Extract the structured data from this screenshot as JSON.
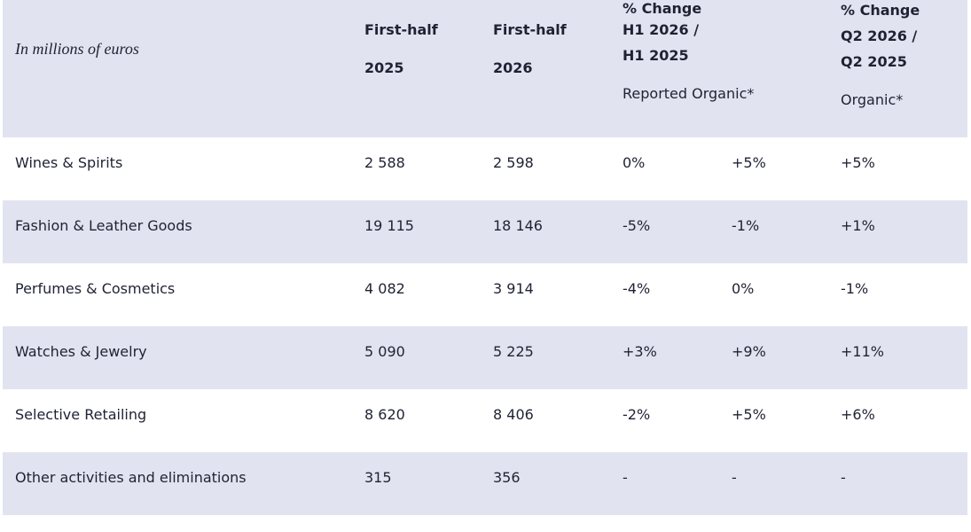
{
  "table": {
    "caption": "In millions of euros",
    "header": {
      "col1": [
        "First-half",
        "2025"
      ],
      "col2": [
        "First-half",
        "2026"
      ],
      "col3": [
        "% Change",
        "H1 2026 /",
        "H1 2025",
        "Reported Organic*"
      ],
      "col4": [
        "% Change",
        "Q2 2026 /",
        "Q2 2025",
        "Organic*"
      ]
    },
    "rows": [
      [
        "Wines & Spirits",
        "2 588",
        "2 598",
        "0%",
        "+5%",
        "+5%"
      ],
      [
        "Fashion & Leather Goods",
        "19 115",
        "18 146",
        "-5%",
        "-1%",
        "+1%"
      ],
      [
        "Perfumes & Cosmetics",
        "4 082",
        "3 914",
        "-4%",
        "0%",
        "-1%"
      ],
      [
        "Watches & Jewelry",
        "5 090",
        "5 225",
        "+3%",
        "+9%",
        "+11%"
      ],
      [
        "Selective Retailing",
        "8 620",
        "8 406",
        "-2%",
        "+5%",
        "+6%"
      ],
      [
        "Other activities and eliminations",
        "315",
        "356",
        "-",
        "-",
        "-"
      ]
    ]
  }
}
